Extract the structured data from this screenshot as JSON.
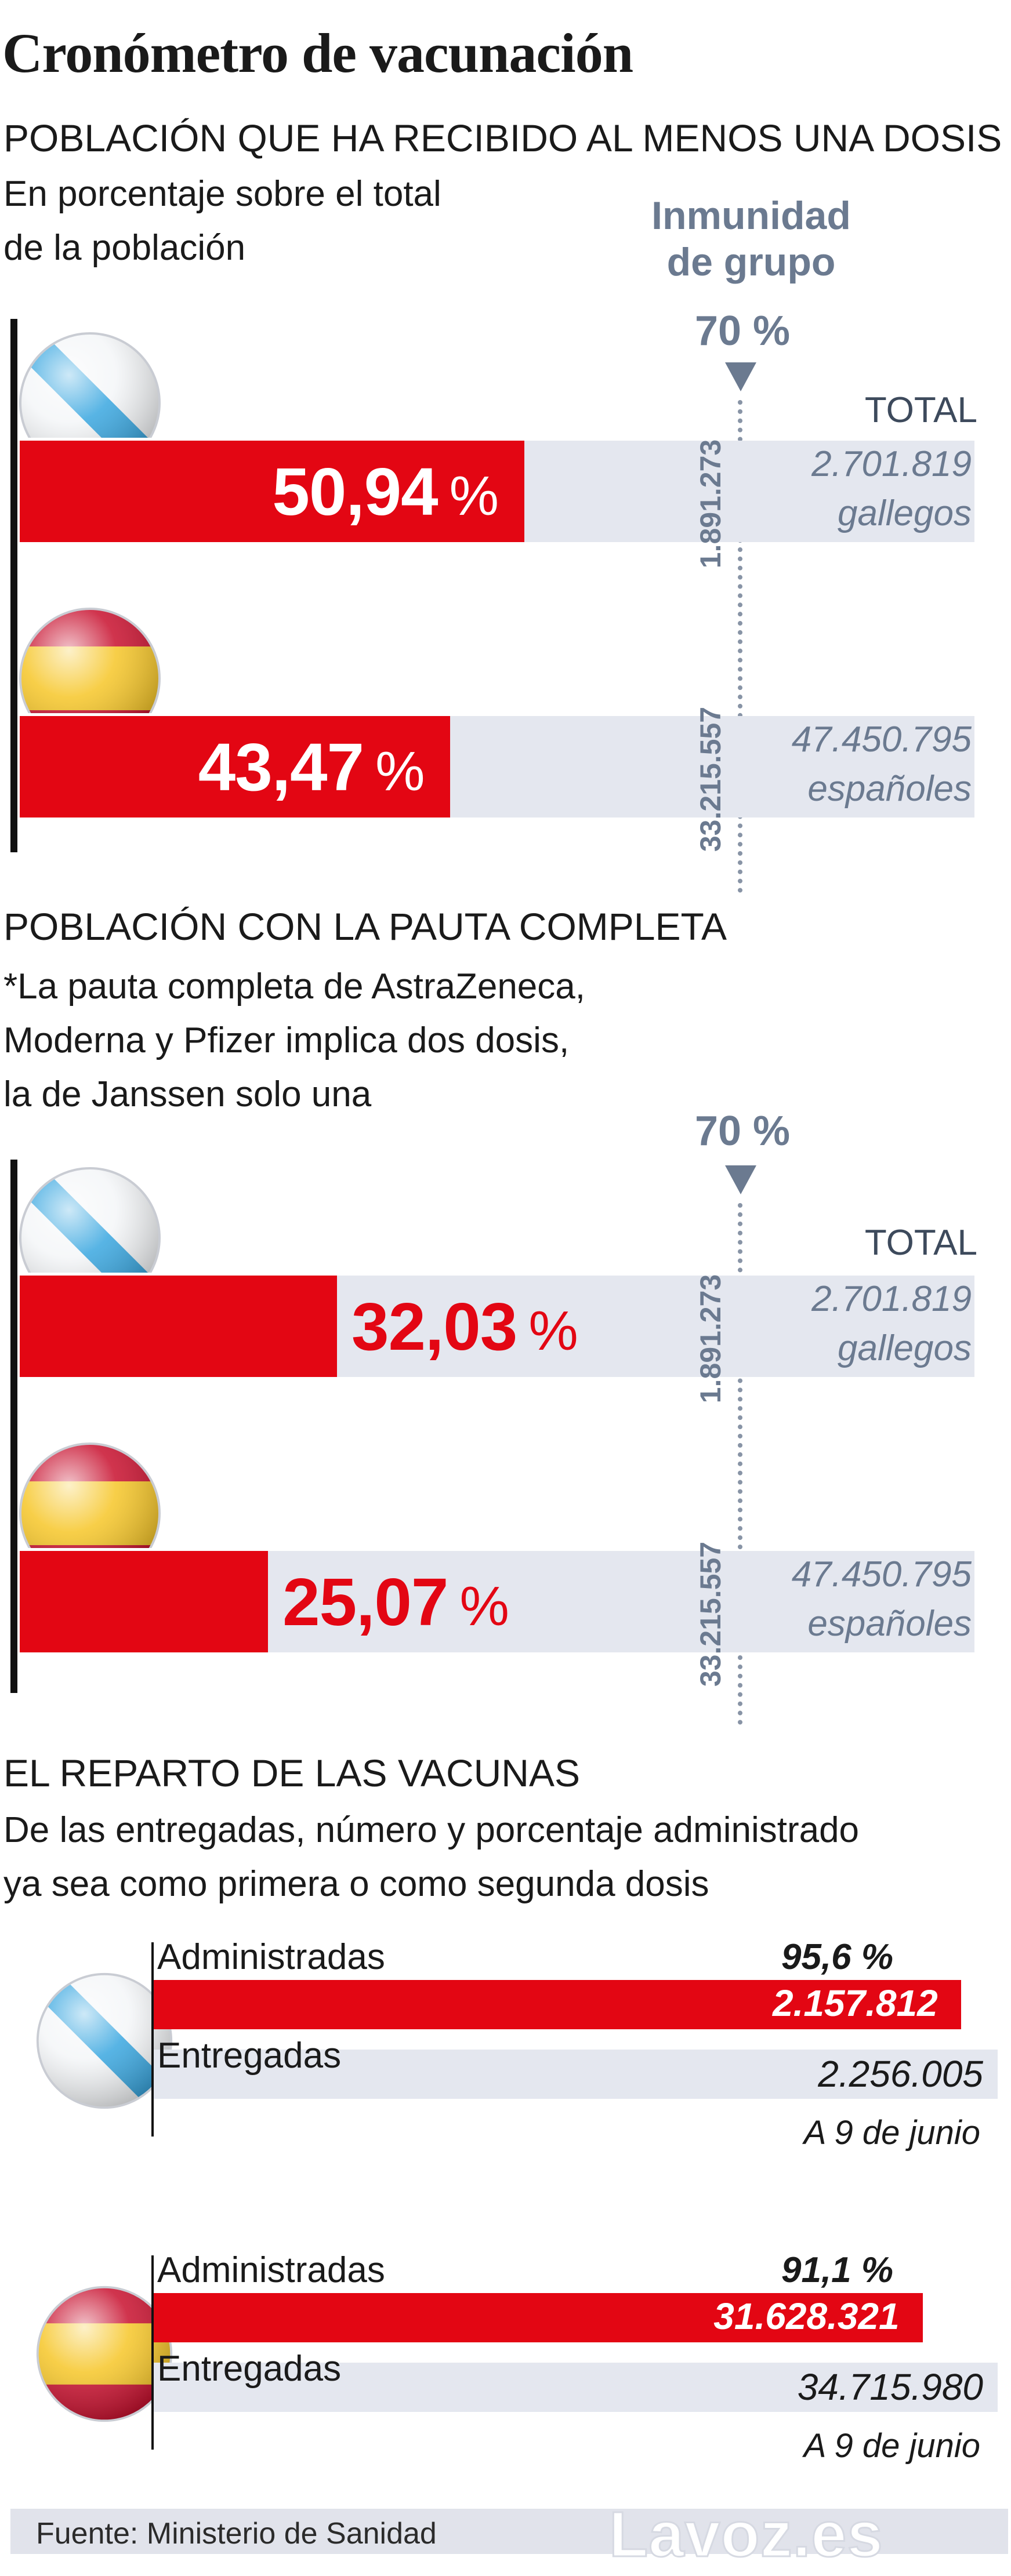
{
  "title": "Cronómetro de vacunación",
  "section1": {
    "heading": "POBLACIÓN QUE HA RECIBIDO AL MENOS UNA DOSIS",
    "sub_line1": "En porcentaje sobre el total",
    "sub_line2": "de la población",
    "herd_line1": "Inmunidad",
    "herd_line2": "de grupo",
    "herd_value": "70 %",
    "total_label": "TOTAL"
  },
  "section2": {
    "heading": "POBLACIÓN CON LA PAUTA COMPLETA",
    "sub_line1": "*La pauta completa de AstraZeneca,",
    "sub_line2": "Moderna y Pfizer implica dos dosis,",
    "sub_line3": "la de Janssen solo una",
    "herd_value": "70 %",
    "total_label": "TOTAL"
  },
  "section3": {
    "heading": "EL REPARTO DE LAS VACUNAS",
    "sub_line1": "De las entregadas, número y porcentaje administrado",
    "sub_line2": "ya sea como primera o como segunda dosis"
  },
  "chart_data": [
    {
      "type": "bar",
      "title": "POBLACIÓN QUE HA RECIBIDO AL MENOS UNA DOSIS",
      "ylim": [
        0,
        100
      ],
      "reference_line": {
        "value": 70,
        "label": "70 %"
      },
      "rows": [
        {
          "region": "galicia",
          "value": 50.94,
          "label": "50,94",
          "unit": "%",
          "herd_count": "1.891.273",
          "total_value": "2.701.819",
          "total_unit": "gallegos"
        },
        {
          "region": "spain",
          "value": 43.47,
          "label": "43,47",
          "unit": "%",
          "herd_count": "33.215.557",
          "total_value": "47.450.795",
          "total_unit": "españoles"
        }
      ]
    },
    {
      "type": "bar",
      "title": "POBLACIÓN CON LA PAUTA COMPLETA",
      "ylim": [
        0,
        100
      ],
      "reference_line": {
        "value": 70,
        "label": "70 %"
      },
      "rows": [
        {
          "region": "galicia",
          "value": 32.03,
          "label": "32,03",
          "unit": "%",
          "herd_count": "1.891.273",
          "total_value": "2.701.819",
          "total_unit": "gallegos"
        },
        {
          "region": "spain",
          "value": 25.07,
          "label": "25,07",
          "unit": "%",
          "herd_count": "33.215.557",
          "total_value": "47.450.795",
          "total_unit": "españoles"
        }
      ]
    },
    {
      "type": "bar",
      "title": "EL REPARTO DE LAS VACUNAS",
      "groups": [
        {
          "region": "galicia",
          "administered_label": "Administradas",
          "administered": 2157812,
          "administered_text": "2.157.812",
          "percent": "95,6 %",
          "delivered_label": "Entregadas",
          "delivered": 2256005,
          "delivered_text": "2.256.005",
          "date": "A 9 de junio"
        },
        {
          "region": "spain",
          "administered_label": "Administradas",
          "administered": 31628321,
          "administered_text": "31.628.321",
          "percent": "91,1 %",
          "delivered_label": "Entregadas",
          "delivered": 34715980,
          "delivered_text": "34.715.980",
          "date": "A 9 de junio"
        }
      ]
    }
  ],
  "footer": {
    "source": "Fuente: Ministerio de Sanidad",
    "brand": "Lavoz.es"
  },
  "colors": {
    "accent_red": "#e30613",
    "track_gray": "#e4e7ef",
    "label_slate": "#6b7a90",
    "galicia_blue": "#3aa7e0",
    "spain_red": "#c8102e",
    "spain_yellow": "#f6c628"
  },
  "icons": {
    "galicia": "galicia-flag-icon",
    "spain": "spain-flag-icon"
  }
}
